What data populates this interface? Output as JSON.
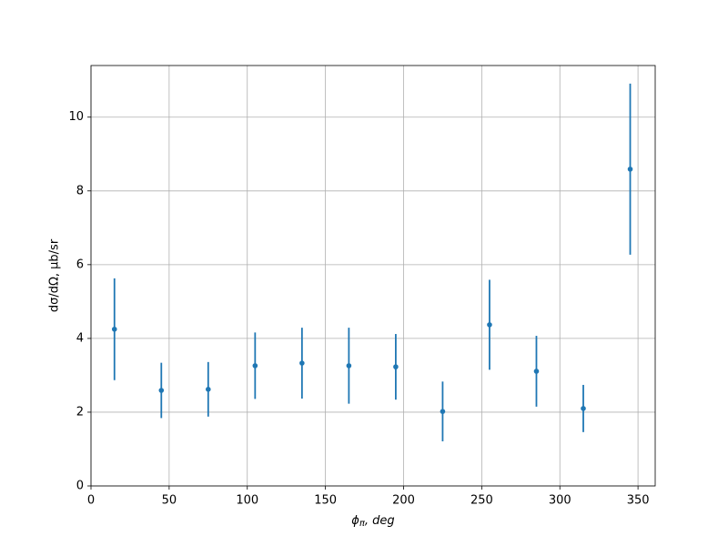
{
  "chart_data": {
    "type": "errorbar",
    "xlabel": {
      "symbol": "ϕ",
      "subscript": "π",
      "text": ", deg"
    },
    "ylabel": "dσ/dΩ, μb/sr",
    "xlim": [
      0,
      361
    ],
    "ylim": [
      0,
      11.4
    ],
    "xticks": [
      0,
      50,
      100,
      150,
      200,
      250,
      300,
      350
    ],
    "yticks": [
      0,
      2,
      4,
      6,
      8,
      10
    ],
    "grid": true,
    "series": [
      {
        "color": "#1f77b4",
        "x": [
          15,
          45,
          75,
          105,
          135,
          165,
          195,
          225,
          255,
          285,
          315,
          345
        ],
        "values": [
          4.25,
          2.59,
          2.62,
          3.26,
          3.33,
          3.26,
          3.23,
          2.02,
          4.37,
          3.11,
          2.1,
          8.59
        ],
        "errors": [
          1.38,
          0.75,
          0.74,
          0.9,
          0.96,
          1.03,
          0.89,
          0.81,
          1.22,
          0.96,
          0.64,
          2.32
        ]
      }
    ]
  }
}
